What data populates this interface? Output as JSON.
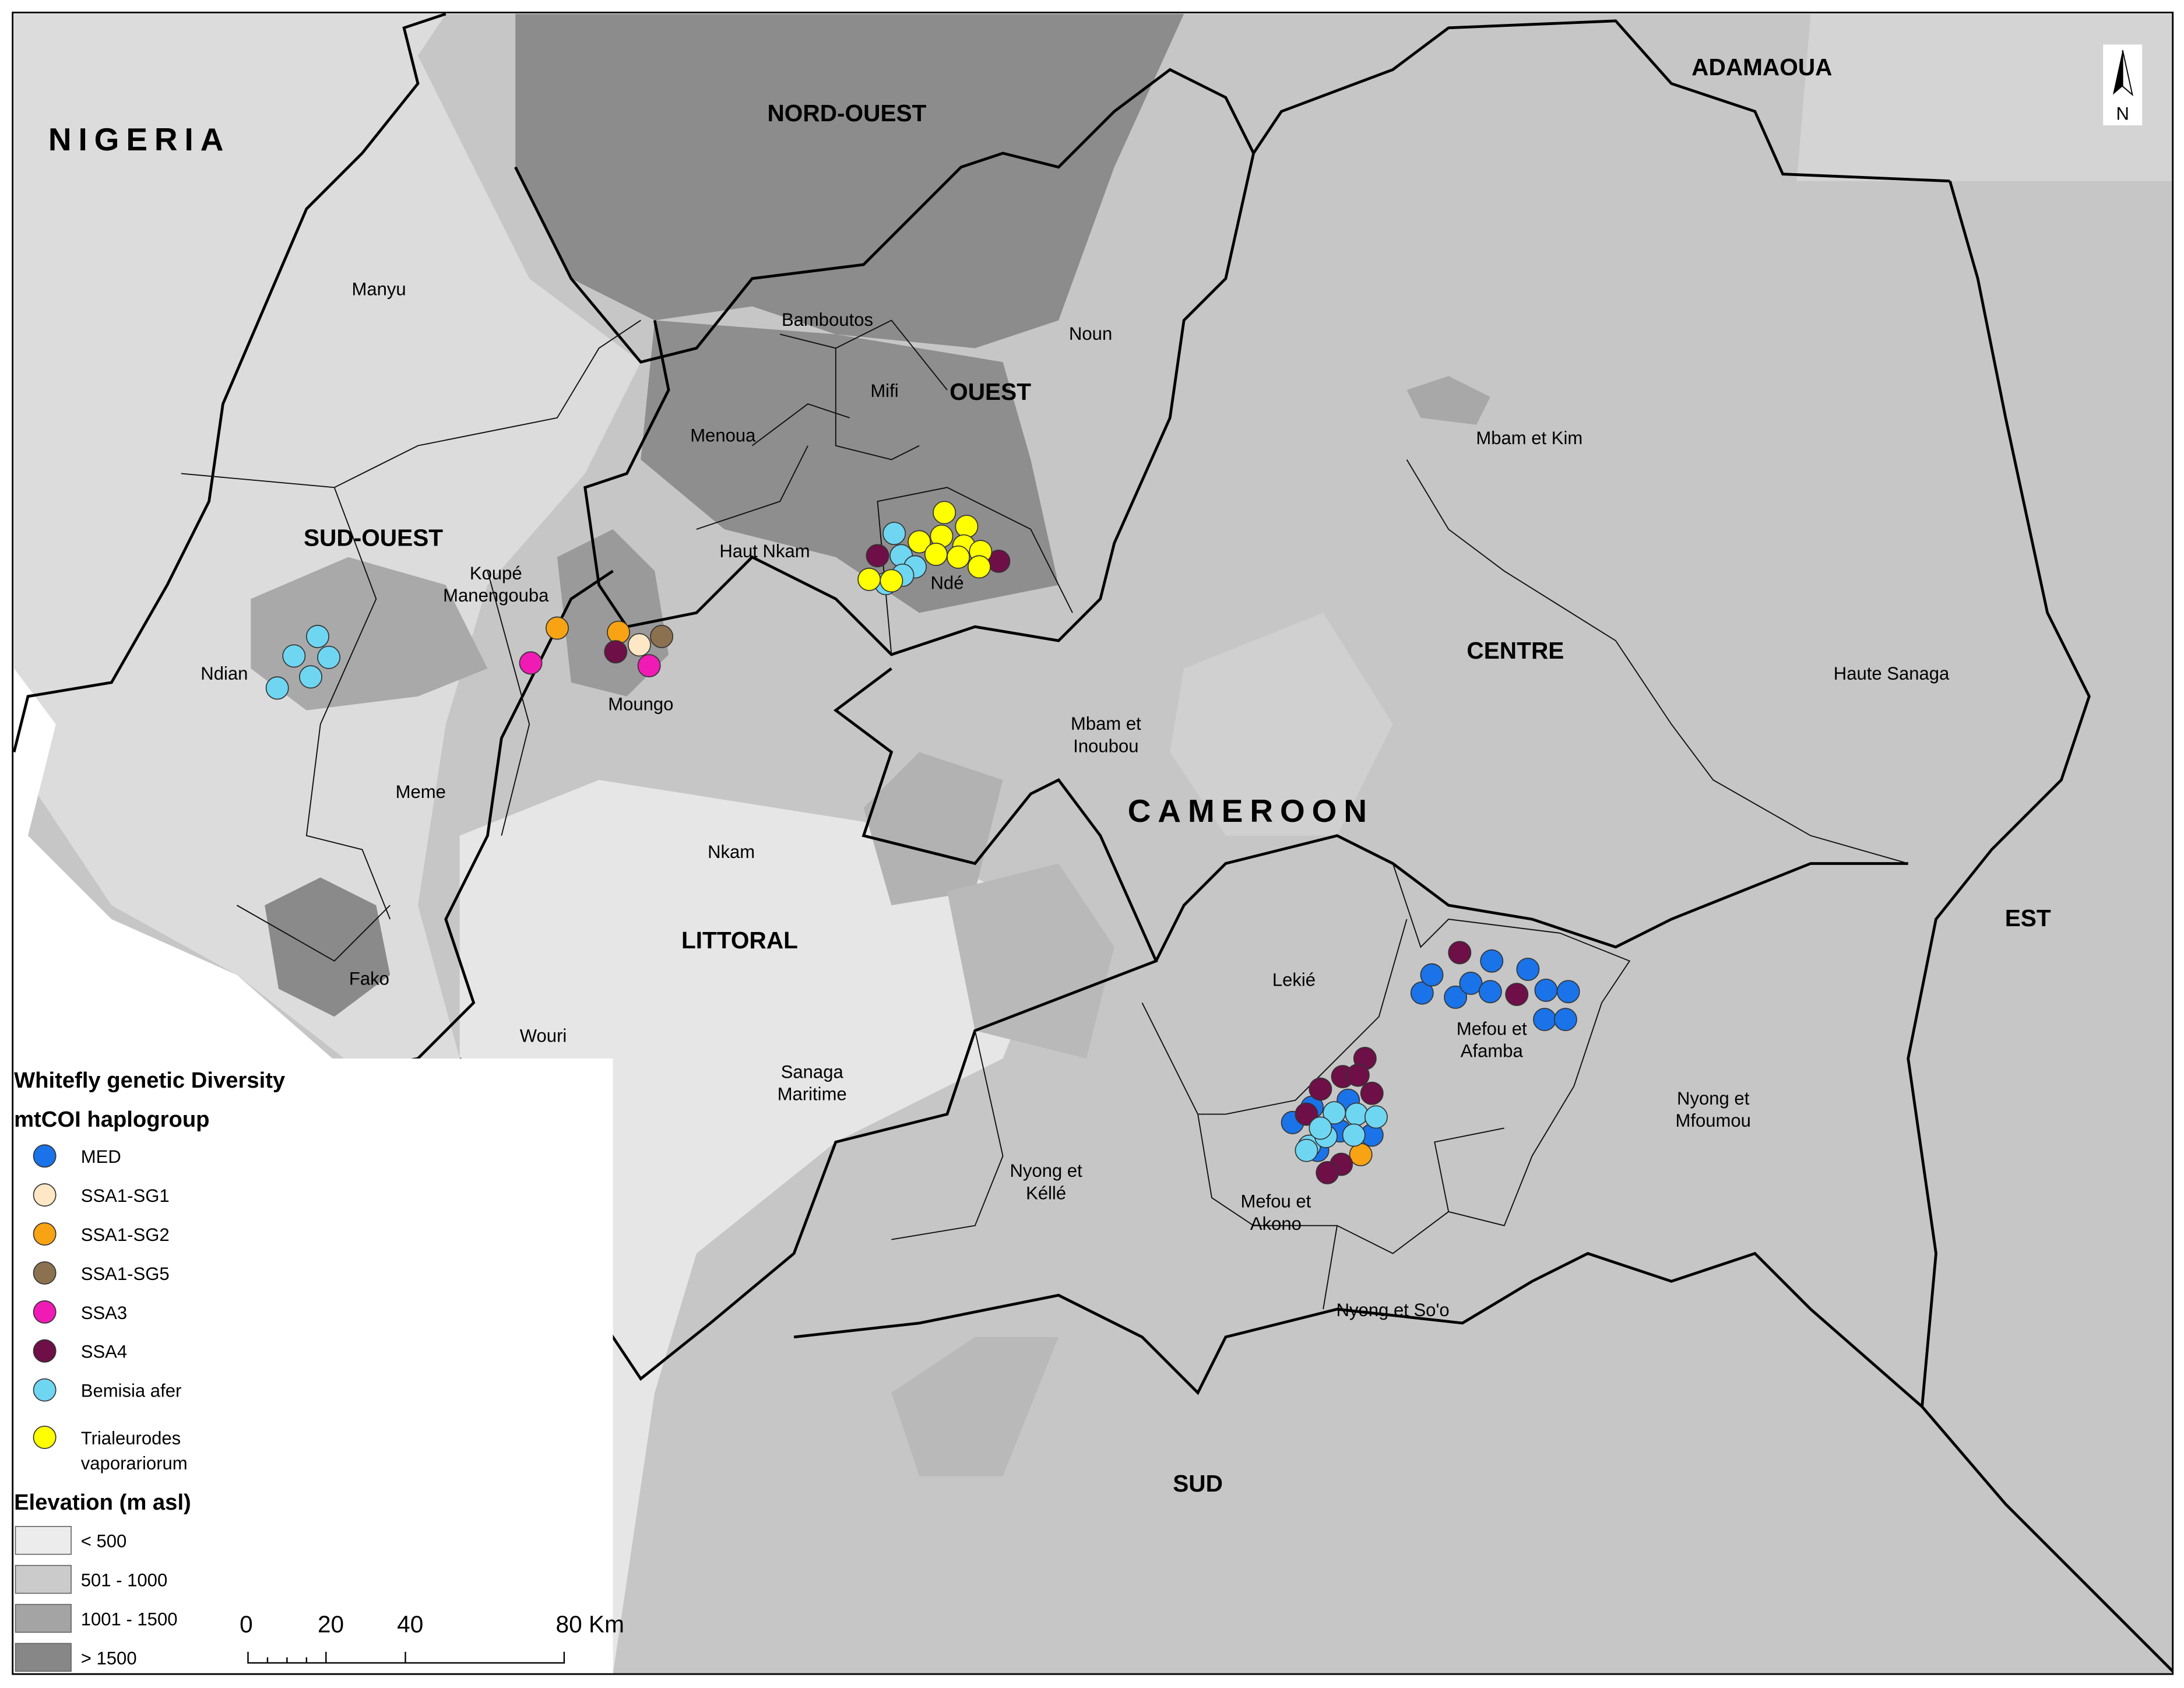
{
  "map": {
    "countries": [
      "NIGERIA",
      "CAMEROON"
    ],
    "regions": [
      "NORD-OUEST",
      "ADAMAOUA",
      "OUEST",
      "SUD-OUEST",
      "CENTRE",
      "LITTORAL",
      "EST",
      "SUD"
    ],
    "departments": [
      [
        "Manyu"
      ],
      [
        "Bamboutos"
      ],
      [
        "Noun"
      ],
      [
        "Mifi"
      ],
      [
        "Menoua"
      ],
      [
        "Haut Nkam"
      ],
      [
        "Ndé"
      ],
      [
        "Mbam et Kim"
      ],
      [
        "Koupé",
        "Manengouba"
      ],
      [
        "Ndian"
      ],
      [
        "Moungo"
      ],
      [
        "Meme"
      ],
      [
        "Haute Sanaga"
      ],
      [
        "Mbam et",
        "Inoubou"
      ],
      [
        "Nkam"
      ],
      [
        "Fako"
      ],
      [
        "Lekié"
      ],
      [
        "Mefou et",
        "Afamba"
      ],
      [
        "Wouri"
      ],
      [
        "Sanaga",
        "Maritime"
      ],
      [
        "Nyong et",
        "Mfoumou"
      ],
      [
        "Nyong et",
        "Kéllé"
      ],
      [
        "Mefou et",
        "Akono"
      ],
      [
        "Nyong et So'o"
      ]
    ],
    "north": "N"
  },
  "legend": {
    "title": "Whitefly genetic Diversity",
    "subtitle": "mtCOI haplogroup",
    "items": [
      {
        "label": [
          "MED"
        ],
        "color": "#1a73e8"
      },
      {
        "label": [
          "SSA1-SG1"
        ],
        "color": "#fde7c4"
      },
      {
        "label": [
          "SSA1-SG2"
        ],
        "color": "#f7a313"
      },
      {
        "label": [
          "SSA1-SG5"
        ],
        "color": "#8c7150"
      },
      {
        "label": [
          "SSA3"
        ],
        "color": "#f01ab4"
      },
      {
        "label": [
          "SSA4"
        ],
        "color": "#6e0f47"
      },
      {
        "label": [
          "Bemisia afer"
        ],
        "color": "#6fd6f2"
      },
      {
        "label": [
          "Trialeurodes",
          "vaporariorum"
        ],
        "color": "#ffff00"
      }
    ]
  },
  "elevation": {
    "title": "Elevation (m asl)",
    "classes": [
      {
        "label": "< 500",
        "color": "#ececec"
      },
      {
        "label": "501 - 1000",
        "color": "#cbcbcb"
      },
      {
        "label": "1001 - 1500",
        "color": "#a4a4a4"
      },
      {
        "label": "> 1500",
        "color": "#878787"
      }
    ]
  },
  "scale_bar": {
    "labels": [
      "0",
      "20",
      "40",
      "80 Km"
    ]
  }
}
